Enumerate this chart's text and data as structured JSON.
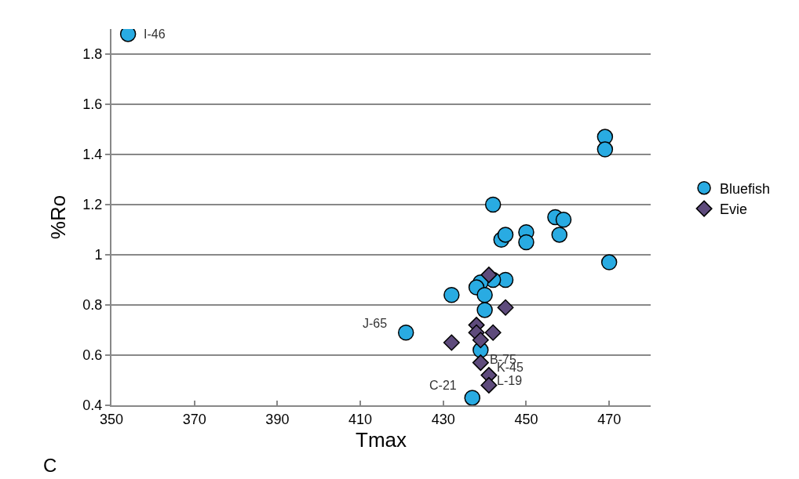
{
  "chart_data": {
    "type": "scatter",
    "xlabel": "Tmax",
    "ylabel": "%Ro",
    "series": [
      {
        "name": "Bluefish",
        "color": "#29abe2",
        "marker": "circle",
        "x": [
          354,
          470,
          469,
          469,
          442,
          457,
          459,
          458,
          450,
          450,
          444,
          445,
          445,
          442,
          439,
          438,
          440,
          432,
          440,
          421,
          439,
          437
        ],
        "values": [
          1.88,
          0.97,
          1.47,
          1.42,
          1.2,
          1.15,
          1.14,
          1.08,
          1.09,
          1.05,
          1.06,
          1.08,
          0.9,
          0.9,
          0.89,
          0.87,
          0.84,
          0.84,
          0.78,
          0.69,
          0.62,
          0.43
        ]
      },
      {
        "name": "Evie",
        "color": "#5e4b7c",
        "marker": "diamond",
        "x": [
          441,
          445,
          438,
          438,
          442,
          439,
          432,
          439,
          441,
          441
        ],
        "values": [
          0.92,
          0.79,
          0.72,
          0.69,
          0.69,
          0.66,
          0.65,
          0.57,
          0.52,
          0.48
        ]
      }
    ],
    "xlim": [
      350,
      480
    ],
    "xticks": [
      350,
      370,
      390,
      410,
      430,
      450,
      470
    ],
    "ylim": [
      0.4,
      1.9
    ],
    "yticks": [
      0.4,
      0.6,
      0.8,
      1,
      1.2,
      1.4,
      1.6,
      1.8
    ],
    "grid": "y",
    "legend": "right",
    "annotations": [
      {
        "text": "I-46",
        "x": 354,
        "y": 1.88
      },
      {
        "text": "J-65",
        "x": 421,
        "y": 0.69
      },
      {
        "text": "B-75",
        "x": 439,
        "y": 0.57
      },
      {
        "text": "K-45",
        "x": 441,
        "y": 0.52
      },
      {
        "text": "L-19",
        "x": 441,
        "y": 0.48
      },
      {
        "text": "C-21",
        "x": 437,
        "y": 0.43
      },
      "C"
    ]
  }
}
